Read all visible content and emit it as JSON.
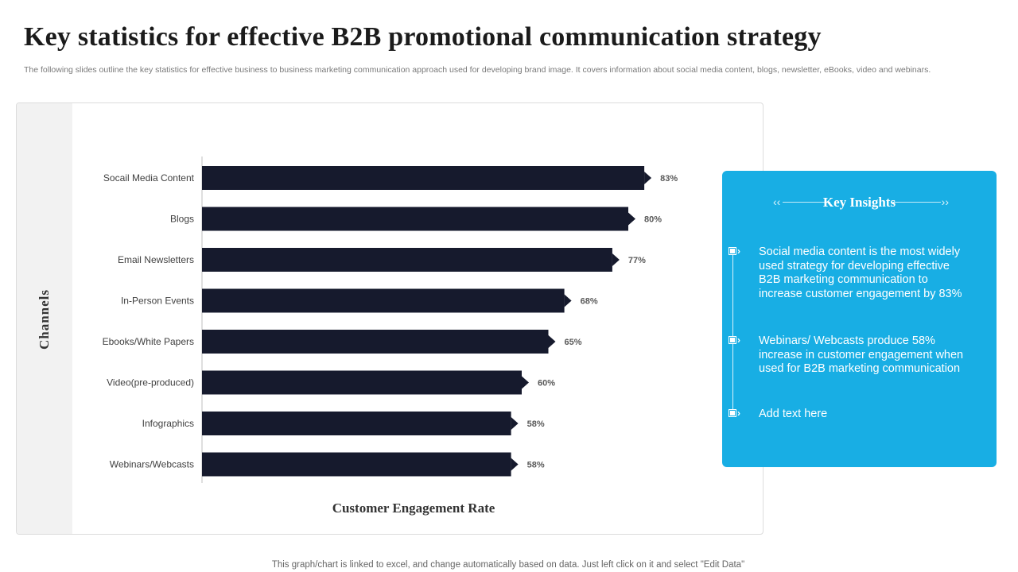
{
  "page": {
    "title": "Key statistics for effective B2B promotional communication strategy",
    "subtitle": "The following slides outline the key statistics for effective business to business marketing communication approach used for developing brand image. It covers information about social media content, blogs, newsletter, eBooks, video and webinars.",
    "footer": "This graph/chart is linked to excel,  and change automatically based on data. Just left click on it and select \"Edit Data\""
  },
  "chart_data": {
    "type": "bar",
    "orientation": "horizontal",
    "categories": [
      "Socail Media Content",
      "Blogs",
      "Email Newsletters",
      "In-Person Events",
      "Ebooks/White Papers",
      "Video(pre-produced)",
      "Infographics",
      "Webinars/Webcasts"
    ],
    "values": [
      83,
      80,
      77,
      68,
      65,
      60,
      58,
      58
    ],
    "value_labels": [
      "83%",
      "80%",
      "77%",
      "68%",
      "65%",
      "60%",
      "58%",
      "58%"
    ],
    "xlabel": "Customer Engagement Rate",
    "ylabel": "Channels",
    "xlim": [
      0,
      100
    ],
    "bar_color": "#161a2d",
    "grid": false,
    "legend": "none"
  },
  "insights": {
    "title": "Key Insights",
    "background": "#18aee4",
    "items": [
      "Social media content is the most widely used strategy for developing effective B2B marketing communication to increase customer engagement by 83%",
      "Webinars/ Webcasts produce 58% increase in customer engagement when used for B2B marketing communication",
      "Add text here"
    ]
  }
}
